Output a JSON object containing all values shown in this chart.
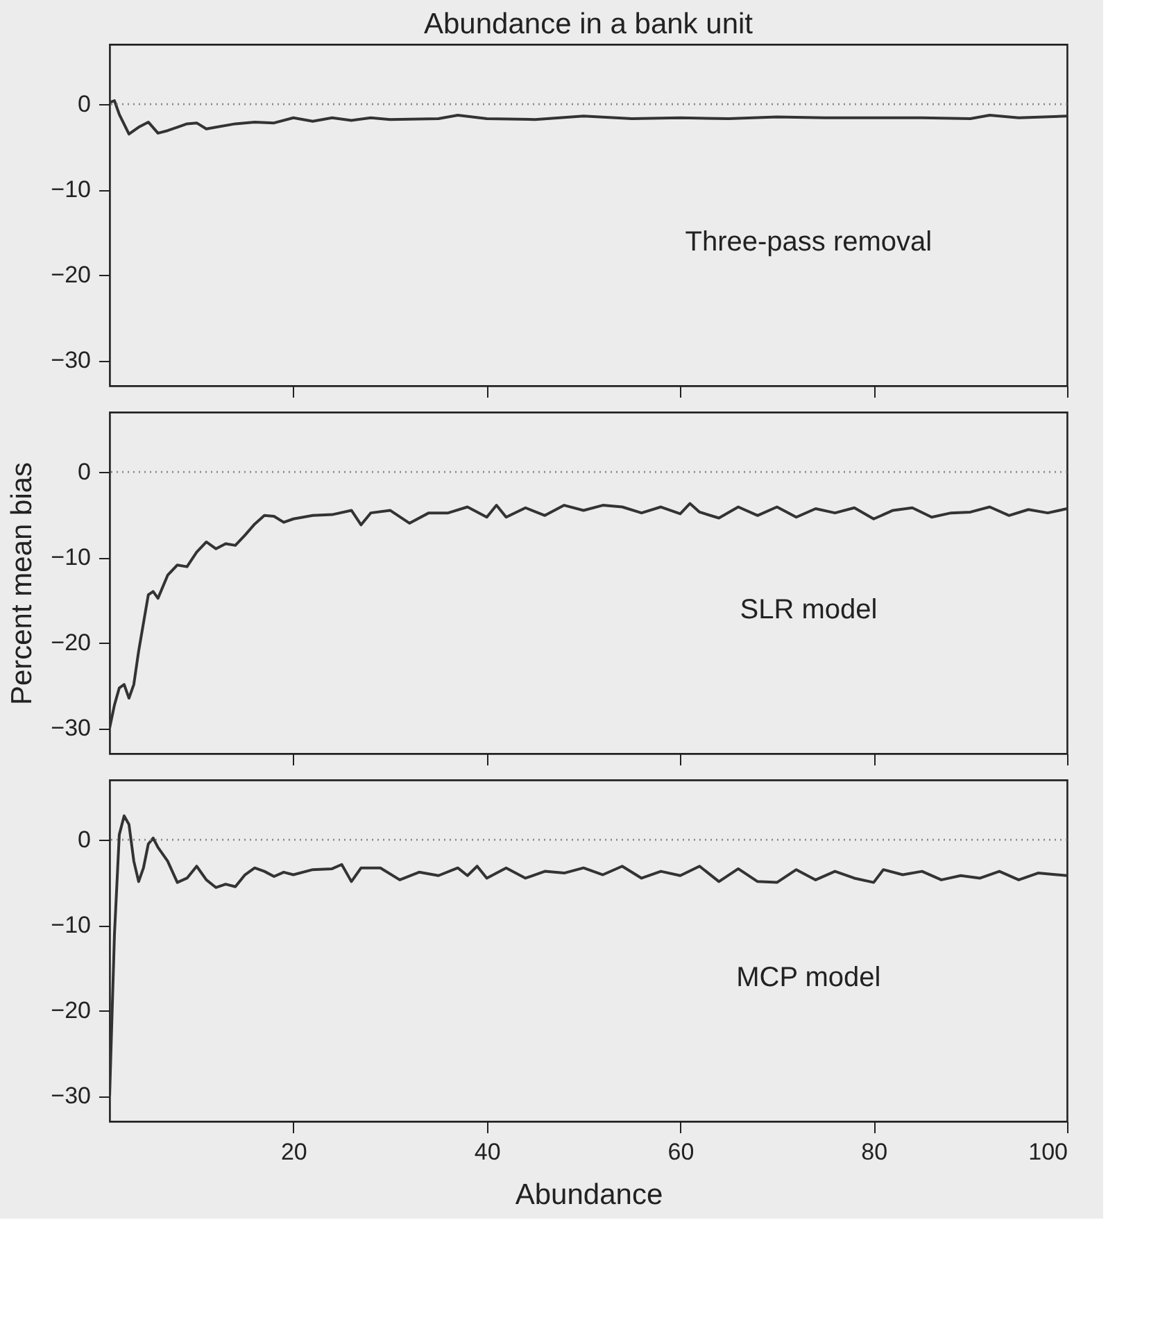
{
  "chart_data": [
    {
      "type": "line",
      "title": "Abundance in a bank unit",
      "annotations": [
        "Three-pass removal"
      ],
      "xlim": [
        1,
        100
      ],
      "xticks": [
        20,
        40,
        60,
        80,
        100
      ],
      "ylim": [
        -33,
        7
      ],
      "yticks": [
        0,
        -10,
        -20,
        -30
      ],
      "tick_labels": "y",
      "grid": false,
      "line_style": "solid",
      "marker": "none",
      "ref_lines": [
        {
          "axis": "y",
          "value": 0,
          "label": null,
          "color": "#888888",
          "line_style": "dotted"
        }
      ],
      "series": [
        {
          "color": "#333333",
          "x": [
            1,
            1.5,
            2,
            3,
            4,
            5,
            6,
            7,
            8,
            9,
            10,
            11,
            12,
            14,
            16,
            18,
            20,
            22,
            24,
            26,
            28,
            30,
            35,
            37,
            40,
            45,
            50,
            55,
            60,
            65,
            70,
            75,
            80,
            85,
            90,
            92,
            95,
            100
          ],
          "values": [
            0.2,
            0.4,
            -1.2,
            -3.5,
            -2.7,
            -2.1,
            -3.4,
            -3.1,
            -2.7,
            -2.3,
            -2.2,
            -2.9,
            -2.7,
            -2.3,
            -2.1,
            -2.2,
            -1.6,
            -2.0,
            -1.6,
            -1.9,
            -1.6,
            -1.8,
            -1.7,
            -1.3,
            -1.7,
            -1.8,
            -1.4,
            -1.7,
            -1.6,
            -1.7,
            -1.5,
            -1.6,
            -1.6,
            -1.6,
            -1.7,
            -1.3,
            -1.6,
            -1.4
          ]
        }
      ]
    },
    {
      "type": "line",
      "ylabel": "Percent mean bias",
      "annotations": [
        "SLR model"
      ],
      "xlim": [
        1,
        100
      ],
      "xticks": [
        20,
        40,
        60,
        80,
        100
      ],
      "ylim": [
        -33,
        7
      ],
      "yticks": [
        0,
        -10,
        -20,
        -30
      ],
      "tick_labels": "y",
      "grid": false,
      "line_style": "solid",
      "marker": "none",
      "ref_lines": [
        {
          "axis": "y",
          "value": 0,
          "label": null,
          "color": "#888888",
          "line_style": "dotted"
        }
      ],
      "series": [
        {
          "color": "#333333",
          "x": [
            1,
            1.5,
            2,
            2.5,
            3,
            3.5,
            4,
            5,
            5.5,
            6,
            7,
            8,
            9,
            10,
            11,
            12,
            13,
            14,
            15,
            16,
            17,
            18,
            19,
            20,
            22,
            24,
            26,
            27,
            28,
            30,
            32,
            34,
            36,
            38,
            40,
            41,
            42,
            44,
            46,
            48,
            50,
            52,
            54,
            56,
            58,
            60,
            61,
            62,
            64,
            66,
            68,
            70,
            72,
            74,
            76,
            78,
            80,
            82,
            84,
            86,
            88,
            90,
            92,
            94,
            96,
            98,
            100
          ],
          "values": [
            -30,
            -27.3,
            -25.3,
            -24.9,
            -26.5,
            -24.9,
            -21.0,
            -14.4,
            -14.0,
            -14.8,
            -12.1,
            -10.9,
            -11.1,
            -9.4,
            -8.2,
            -9.0,
            -8.4,
            -8.6,
            -7.4,
            -6.1,
            -5.1,
            -5.2,
            -5.9,
            -5.5,
            -5.1,
            -5.0,
            -4.5,
            -6.2,
            -4.8,
            -4.5,
            -6.0,
            -4.8,
            -4.8,
            -4.1,
            -5.3,
            -3.9,
            -5.3,
            -4.2,
            -5.1,
            -3.9,
            -4.5,
            -3.9,
            -4.1,
            -4.8,
            -4.1,
            -4.9,
            -3.7,
            -4.7,
            -5.4,
            -4.1,
            -5.1,
            -4.1,
            -5.3,
            -4.3,
            -4.8,
            -4.2,
            -5.5,
            -4.5,
            -4.2,
            -5.3,
            -4.8,
            -4.7,
            -4.1,
            -5.1,
            -4.4,
            -4.8,
            -4.3
          ]
        }
      ]
    },
    {
      "type": "line",
      "xlabel": "Abundance",
      "annotations": [
        "MCP model"
      ],
      "xlim": [
        1,
        100
      ],
      "xticks": [
        20,
        40,
        60,
        80,
        100
      ],
      "ylim": [
        -33,
        7
      ],
      "yticks": [
        0,
        -10,
        -20,
        -30
      ],
      "grid": false,
      "line_style": "solid",
      "marker": "none",
      "ref_lines": [
        {
          "axis": "y",
          "value": 0,
          "label": null,
          "color": "#888888",
          "line_style": "dotted"
        }
      ],
      "series": [
        {
          "color": "#333333",
          "x": [
            1,
            1.5,
            2,
            2.5,
            3,
            3.5,
            4,
            4.5,
            5,
            5.5,
            6,
            7,
            8,
            9,
            10,
            11,
            12,
            13,
            14,
            15,
            16,
            17,
            18,
            19,
            20,
            22,
            24,
            25,
            26,
            27,
            29,
            31,
            33,
            35,
            37,
            38,
            39,
            40,
            42,
            44,
            46,
            48,
            50,
            52,
            54,
            56,
            58,
            60,
            62,
            64,
            66,
            68,
            70,
            72,
            74,
            76,
            78,
            80,
            81,
            83,
            85,
            87,
            89,
            91,
            93,
            95,
            97,
            100
          ],
          "values": [
            -30,
            -11.1,
            0.6,
            2.8,
            1.8,
            -2.5,
            -4.9,
            -3.3,
            -0.5,
            0.2,
            -0.9,
            -2.5,
            -5.0,
            -4.5,
            -3.1,
            -4.7,
            -5.6,
            -5.2,
            -5.5,
            -4.1,
            -3.3,
            -3.7,
            -4.3,
            -3.8,
            -4.1,
            -3.5,
            -3.4,
            -2.9,
            -4.9,
            -3.3,
            -3.3,
            -4.7,
            -3.8,
            -4.2,
            -3.3,
            -4.2,
            -3.1,
            -4.5,
            -3.3,
            -4.5,
            -3.7,
            -3.9,
            -3.3,
            -4.1,
            -3.1,
            -4.5,
            -3.7,
            -4.2,
            -3.1,
            -4.9,
            -3.4,
            -4.9,
            -5.0,
            -3.5,
            -4.7,
            -3.7,
            -4.5,
            -5.0,
            -3.5,
            -4.1,
            -3.7,
            -4.7,
            -4.2,
            -4.5,
            -3.7,
            -4.7,
            -3.9,
            -4.2
          ]
        }
      ]
    }
  ]
}
